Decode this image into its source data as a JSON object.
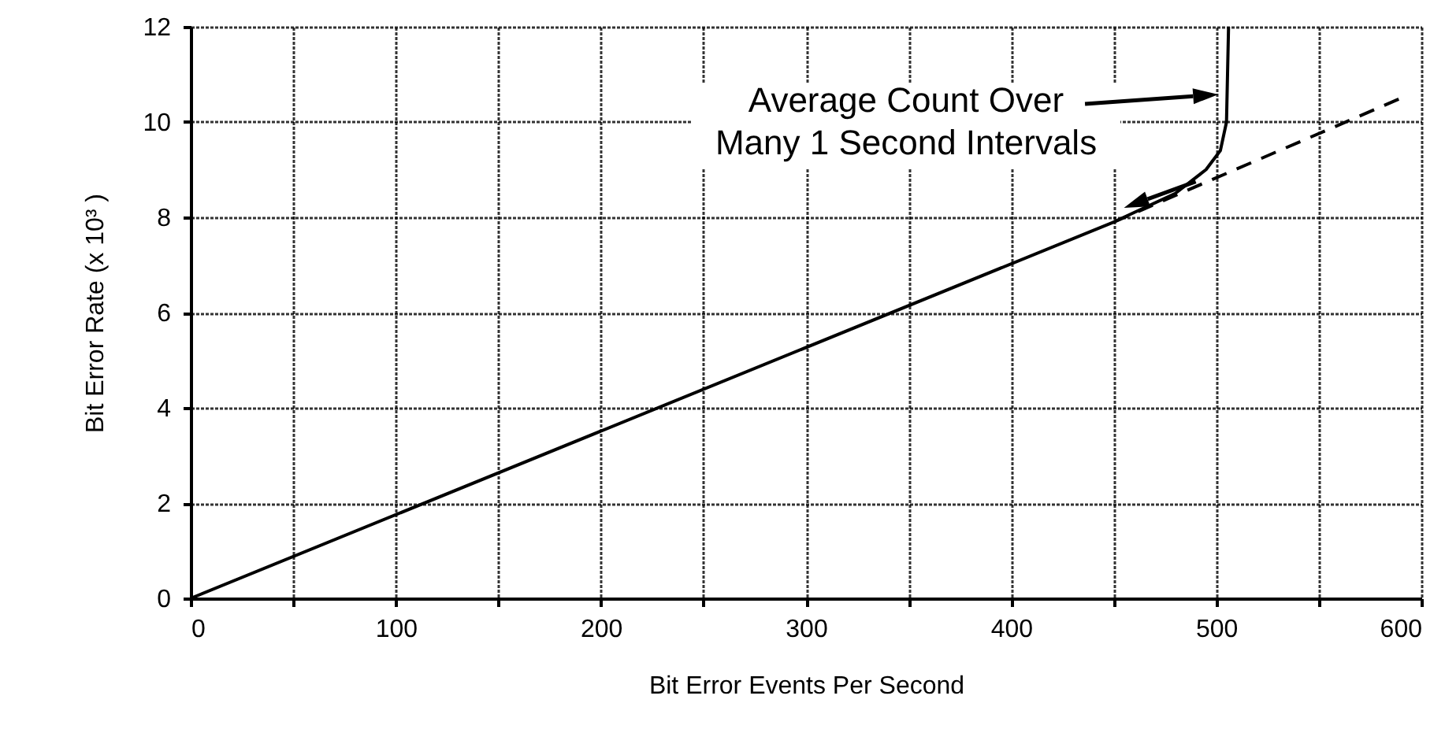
{
  "chart_data": {
    "type": "line",
    "xlabel": "Bit Error Events Per Second",
    "ylabel": "Bit Error Rate (x 10³ )",
    "xlim": [
      0,
      600
    ],
    "ylim": [
      0,
      12
    ],
    "xticks": [
      0,
      {
        "value": 50,
        "label": null
      },
      100,
      {
        "value": 150,
        "label": null
      },
      200,
      {
        "value": 250,
        "label": null
      },
      300,
      {
        "value": 350,
        "label": null
      },
      400,
      {
        "value": 450,
        "label": null
      },
      500,
      {
        "value": 550,
        "label": null
      },
      600
    ],
    "yticks": [
      0,
      2,
      4,
      6,
      8,
      10,
      12
    ],
    "grid": true,
    "series": [
      {
        "color": "#000000",
        "line_style": "solid",
        "x": [
          0,
          450,
          480,
          495,
          502,
          505,
          506
        ],
        "values": [
          0,
          7.9,
          8.5,
          9.0,
          9.4,
          10.0,
          12
        ]
      },
      {
        "color": "#000000",
        "line_style": "dashed",
        "x": [
          450,
          590
        ],
        "values": [
          7.9,
          10.5
        ]
      }
    ],
    "annotations": [
      "Average Count Over\nMany 1 Second Intervals"
    ]
  }
}
